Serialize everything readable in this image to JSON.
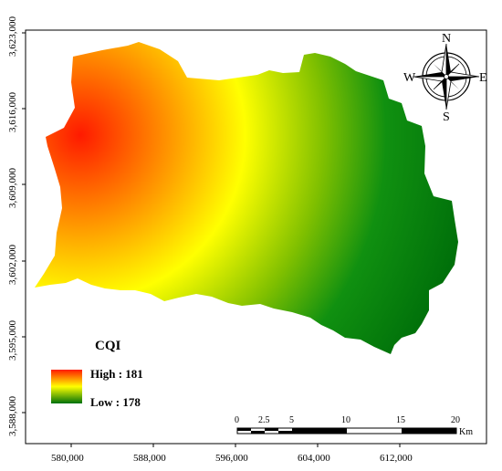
{
  "map": {
    "x_ticks": [
      "580,000",
      "588,000",
      "596,000",
      "604,000",
      "612,000"
    ],
    "y_ticks": [
      "3,623,000",
      "3,616,000",
      "3,609,000",
      "3,602,000",
      "3,595,000",
      "3,588,000"
    ],
    "high_color": "#ff1a00",
    "mid_color": "#ffff00",
    "low_color": "#00700a"
  },
  "legend": {
    "title": "CQI",
    "high_label": "High : 181",
    "low_label": "Low : 178"
  },
  "scale_bar": {
    "labels": [
      "0",
      "2.5",
      "5",
      "10",
      "15",
      "20"
    ],
    "unit": "Km"
  },
  "north_arrow": {
    "north": "N",
    "south": "S",
    "east": "E",
    "west": "W"
  }
}
